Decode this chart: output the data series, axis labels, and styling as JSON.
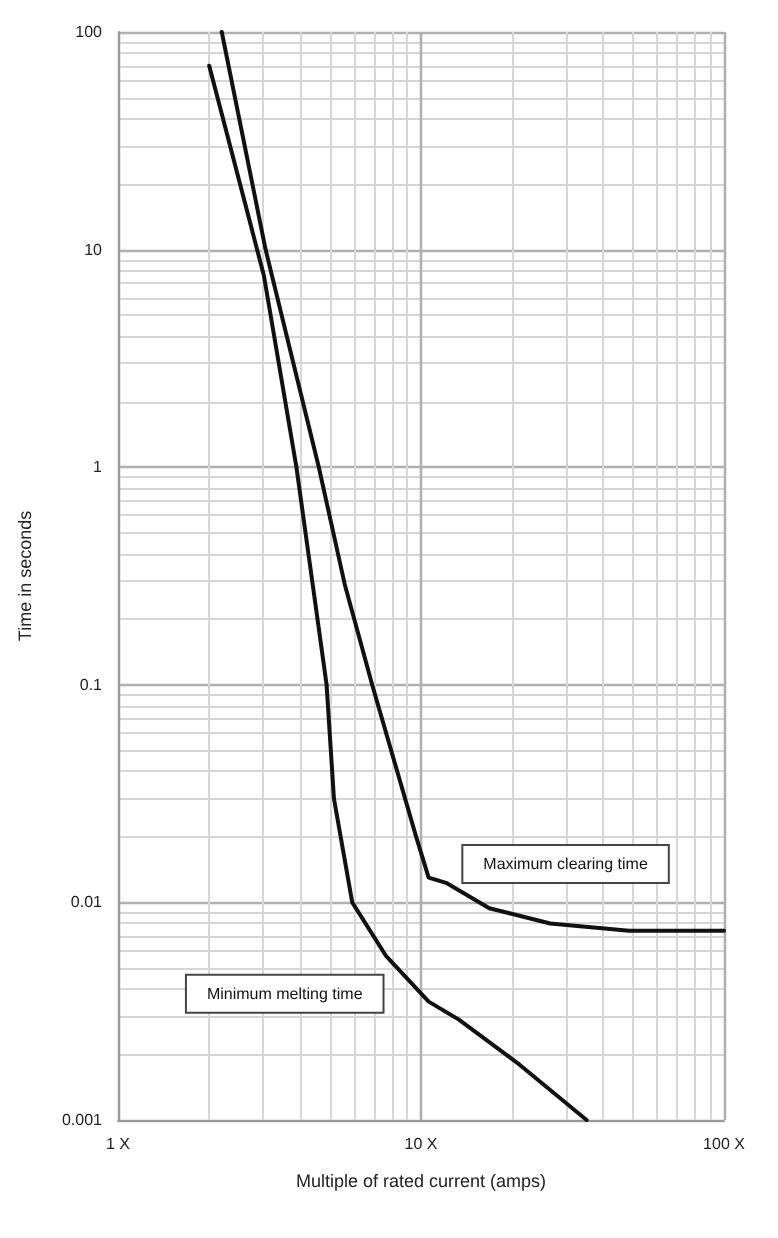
{
  "chart_data": {
    "type": "line",
    "xlabel": "Multiple of rated current (amps)",
    "ylabel": "Time in seconds",
    "log": "xy",
    "grid": true,
    "legend": false,
    "marker": "none",
    "line_style": "solid",
    "xlim": [
      1,
      100
    ],
    "xticks": [
      {
        "value": 1,
        "label": "1 X"
      },
      {
        "value": 10,
        "label": "10 X"
      },
      {
        "value": 100,
        "label": "100 X"
      }
    ],
    "ylim": [
      0.001,
      100
    ],
    "yticks": [
      0.001,
      0.01,
      0.1,
      1,
      10,
      100
    ],
    "series": [
      {
        "name": "Minimum melting time",
        "color": "#111111",
        "x": [
          2,
          3.03,
          3.88,
          4.39,
          4.88,
          5.16,
          5.93,
          7.65,
          10.6,
          13.3,
          21.1,
          35.2
        ],
        "values": [
          70,
          7.6,
          1,
          0.29,
          0.1,
          0.03,
          0.01,
          0.0057,
          0.0035,
          0.0029,
          0.0018,
          0.001
        ]
      },
      {
        "name": "Maximum clearing time",
        "color": "#111111",
        "x": [
          2.2,
          3.07,
          4.6,
          5.6,
          6.9,
          9.64,
          10.6,
          12.1,
          16.8,
          26.7,
          48.6,
          100
        ],
        "values": [
          100,
          10,
          1,
          0.29,
          0.1,
          0.02,
          0.013,
          0.0123,
          0.0094,
          0.008,
          0.0074,
          0.0074
        ]
      }
    ]
  }
}
